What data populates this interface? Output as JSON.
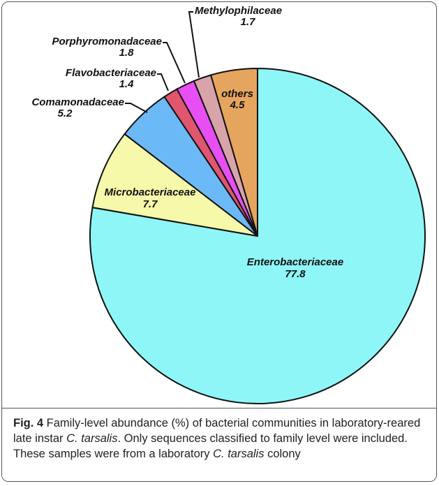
{
  "chart_data": {
    "type": "pie",
    "categories": [
      "Enterobacteriaceae",
      "Microbacteriaceae",
      "Comamonadaceae",
      "Flavobacteriaceae",
      "Porphyromonadaceae",
      "Methylophilaceae",
      "others"
    ],
    "values": [
      77.8,
      7.7,
      5.2,
      1.4,
      1.8,
      1.7,
      4.5
    ],
    "colors": [
      "#8ef6f6",
      "#f6f8aa",
      "#6cb9f8",
      "#e0566e",
      "#e84ff2",
      "#d8a4aa",
      "#e6a55f"
    ]
  },
  "caption": {
    "label": "Fig. 4",
    "text": [
      " Family-level abundance (%) of bacterial communities in laboratory-reared late instar ",
      "C. tarsalis",
      ". Only sequences classified to family level were included. These samples were from a laboratory ",
      "C. tarsalis",
      " colony"
    ]
  }
}
